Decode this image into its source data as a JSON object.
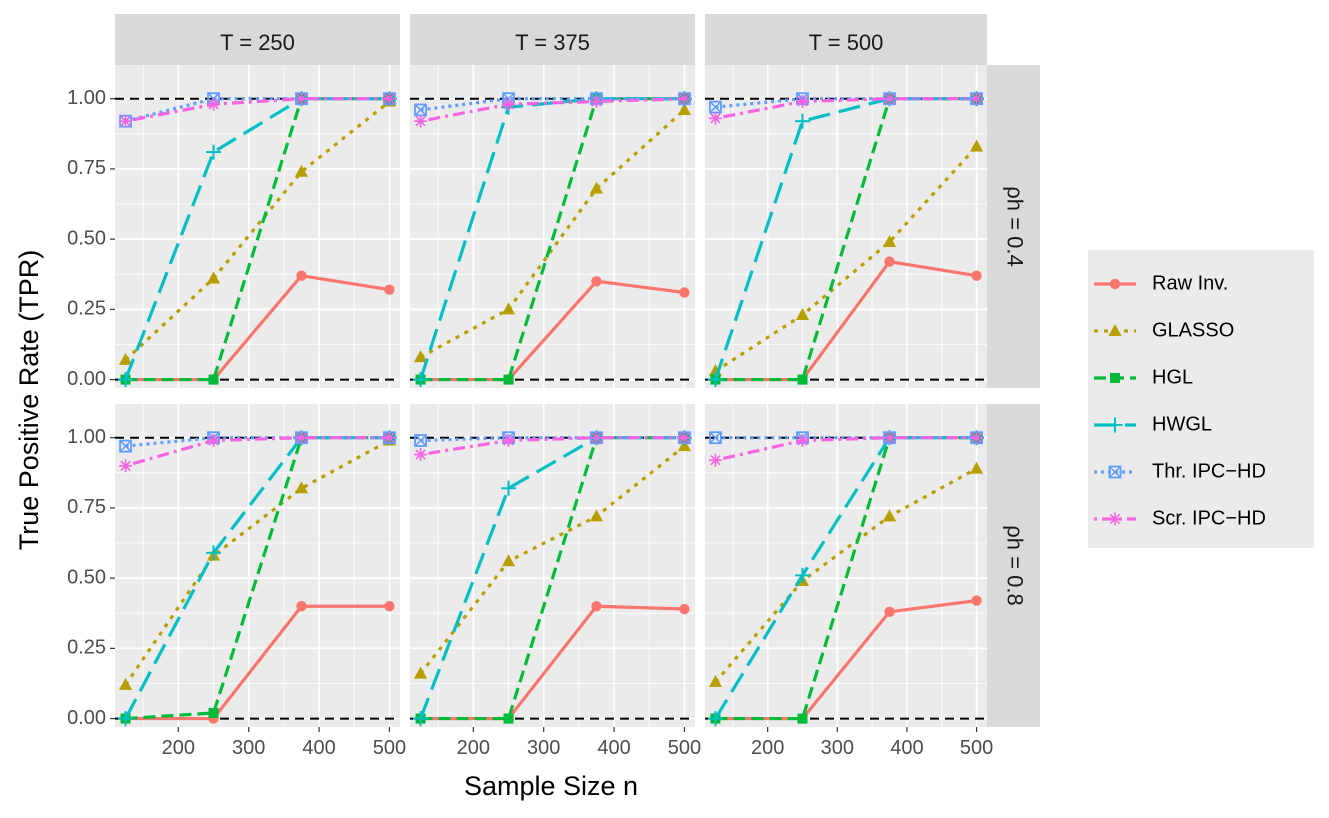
{
  "chart_data": {
    "type": "line",
    "xlabel": "Sample Size n",
    "ylabel": "True Positive Rate (TPR)",
    "x": [
      125,
      250,
      375,
      500
    ],
    "xticks": [
      200,
      300,
      400,
      500
    ],
    "xlim": [
      110,
      515
    ],
    "ylim": [
      -0.03,
      1.12
    ],
    "yticks": [
      0,
      0.25,
      0.5,
      0.75,
      1.0
    ],
    "ytick_labels": [
      "0.00",
      "0.25",
      "0.50",
      "0.75",
      "1.00"
    ],
    "hlines": [
      0,
      1
    ],
    "col_facets": [
      "T = 250",
      "T = 375",
      "T = 500"
    ],
    "row_facets": [
      "ρh = 0.4",
      "ρh = 0.8"
    ],
    "series_meta": [
      {
        "name": "Raw Inv.",
        "color": "#F8766D",
        "dash": "solid",
        "marker": "circle"
      },
      {
        "name": "GLASSO",
        "color": "#B79F00",
        "dash": "dotted",
        "marker": "triangle"
      },
      {
        "name": "HGL",
        "color": "#00BA38",
        "dash": "dashed",
        "marker": "square"
      },
      {
        "name": "HWGL",
        "color": "#00BFC4",
        "dash": "longdash",
        "marker": "plus"
      },
      {
        "name": "Thr. IPC−HD",
        "color": "#619CFF",
        "dash": "dotdense",
        "marker": "boxx"
      },
      {
        "name": "Scr. IPC−HD",
        "color": "#F564E3",
        "dash": "dotdash",
        "marker": "asterisk"
      }
    ],
    "panels": [
      [
        {
          "series": [
            [
              0,
              0,
              0.37,
              0.32
            ],
            [
              0.07,
              0.36,
              0.74,
              0.99
            ],
            [
              0,
              0,
              1.0,
              1.0
            ],
            [
              0,
              0.81,
              1.0,
              1.0
            ],
            [
              0.92,
              1.0,
              1.0,
              1.0
            ],
            [
              0.92,
              0.98,
              1.0,
              1.0
            ]
          ]
        },
        {
          "series": [
            [
              0,
              0,
              0.35,
              0.31
            ],
            [
              0.08,
              0.25,
              0.68,
              0.96
            ],
            [
              0,
              0,
              1.0,
              1.0
            ],
            [
              0,
              0.97,
              1.0,
              1.0
            ],
            [
              0.96,
              1.0,
              1.0,
              1.0
            ],
            [
              0.92,
              0.98,
              0.99,
              1.0
            ]
          ]
        },
        {
          "series": [
            [
              0,
              0,
              0.42,
              0.37
            ],
            [
              0.03,
              0.23,
              0.49,
              0.83
            ],
            [
              0,
              0,
              1.0,
              1.0
            ],
            [
              0,
              0.92,
              1.0,
              1.0
            ],
            [
              0.97,
              1.0,
              1.0,
              1.0
            ],
            [
              0.93,
              0.99,
              1.0,
              1.0
            ]
          ]
        }
      ],
      [
        {
          "series": [
            [
              0,
              0,
              0.4,
              0.4
            ],
            [
              0.12,
              0.58,
              0.82,
              0.99
            ],
            [
              0,
              0.02,
              1.0,
              1.0
            ],
            [
              0,
              0.59,
              1.0,
              1.0
            ],
            [
              0.97,
              1.0,
              1.0,
              1.0
            ],
            [
              0.9,
              0.99,
              1.0,
              1.0
            ]
          ]
        },
        {
          "series": [
            [
              0,
              0,
              0.4,
              0.39
            ],
            [
              0.16,
              0.56,
              0.72,
              0.97
            ],
            [
              0,
              0,
              1.0,
              1.0
            ],
            [
              0,
              0.82,
              1.0,
              1.0
            ],
            [
              0.99,
              1.0,
              1.0,
              1.0
            ],
            [
              0.94,
              0.99,
              1.0,
              1.0
            ]
          ]
        },
        {
          "series": [
            [
              0,
              0,
              0.38,
              0.42
            ],
            [
              0.13,
              0.49,
              0.72,
              0.89
            ],
            [
              0,
              0,
              1.0,
              1.0
            ],
            [
              0,
              0.51,
              1.0,
              1.0
            ],
            [
              1.0,
              1.0,
              1.0,
              1.0
            ],
            [
              0.92,
              0.99,
              1.0,
              1.0
            ]
          ]
        }
      ]
    ]
  }
}
